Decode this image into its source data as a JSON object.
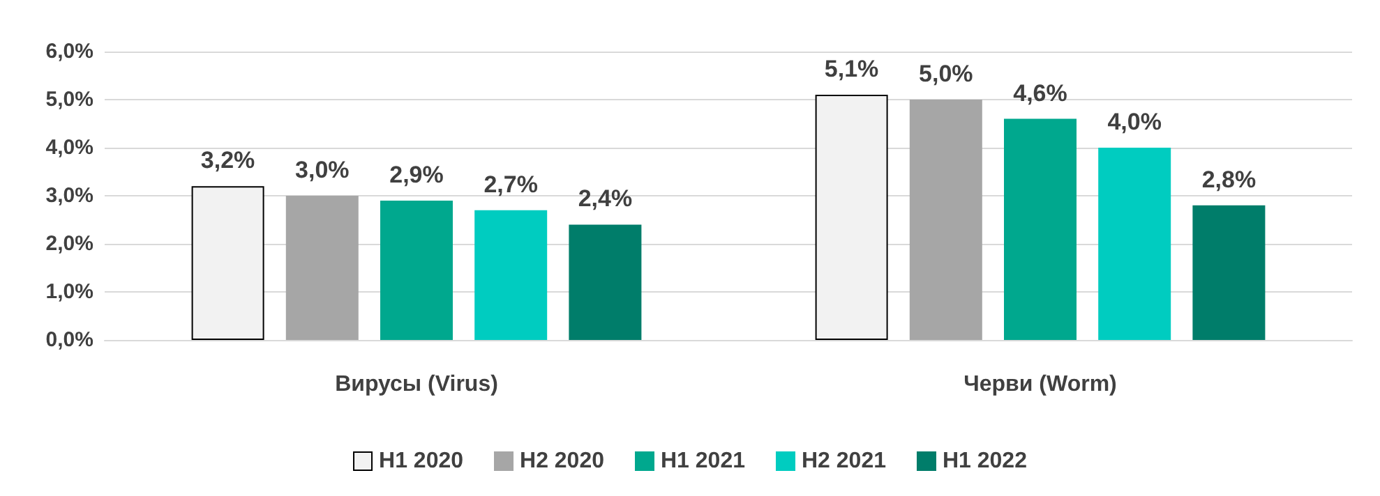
{
  "chart_data": {
    "type": "bar",
    "categories": [
      "Вирусы (Virus)",
      "Черви (Worm)"
    ],
    "series": [
      {
        "name": "H1 2020",
        "color": "#f2f2f2",
        "values": [
          3.2,
          5.1
        ],
        "value_labels": [
          "3,2%",
          "5,1%"
        ]
      },
      {
        "name": "H2 2020",
        "color": "#a6a6a6",
        "values": [
          3.0,
          5.0
        ],
        "value_labels": [
          "3,0%",
          "5,0%"
        ]
      },
      {
        "name": "H1 2021",
        "color": "#00a88e",
        "values": [
          2.9,
          4.6
        ],
        "value_labels": [
          "2,9%",
          "4,6%"
        ]
      },
      {
        "name": "H2 2021",
        "color": "#00ccc0",
        "values": [
          2.7,
          4.0
        ],
        "value_labels": [
          "2,7%",
          "4,0%"
        ]
      },
      {
        "name": "H1 2022",
        "color": "#007d6a",
        "values": [
          2.4,
          2.8
        ],
        "value_labels": [
          "2,4%",
          "2,8%"
        ]
      }
    ],
    "ylim": [
      0,
      6
    ],
    "yticks": [
      {
        "value": 0,
        "label": "0,0%"
      },
      {
        "value": 1,
        "label": "1,0%"
      },
      {
        "value": 2,
        "label": "2,0%"
      },
      {
        "value": 3,
        "label": "3,0%"
      },
      {
        "value": 4,
        "label": "4,0%"
      },
      {
        "value": 5,
        "label": "5,0%"
      },
      {
        "value": 6,
        "label": "6,0%"
      }
    ],
    "grid": "y",
    "legend": "bottom"
  }
}
